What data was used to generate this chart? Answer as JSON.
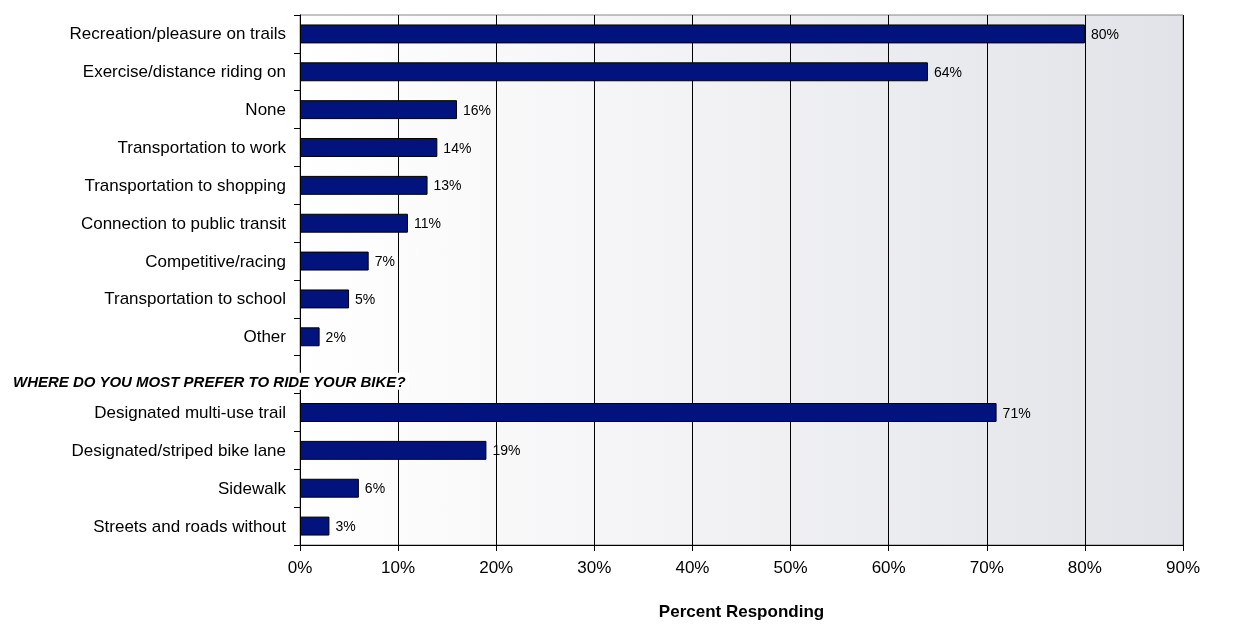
{
  "chart_data": {
    "type": "bar",
    "orientation": "horizontal",
    "categories": [
      "Recreation/pleasure on trails",
      "Exercise/distance riding on",
      "None",
      "Transportation to work",
      "Transportation to shopping",
      "Connection to public transit",
      "Competitive/racing",
      "Transportation to school",
      "Other",
      null,
      "Designated multi-use trail",
      "Designated/striped bike lane",
      "Sidewalk",
      "Streets and roads without"
    ],
    "values": [
      80,
      64,
      16,
      14,
      13,
      11,
      7,
      5,
      2,
      null,
      71,
      19,
      6,
      3
    ],
    "value_labels": [
      "80%",
      "64%",
      "16%",
      "14%",
      "13%",
      "11%",
      "7%",
      "5%",
      "2%",
      null,
      "71%",
      "19%",
      "6%",
      "3%"
    ],
    "color": "#03137e",
    "xlabel": "Percent Responding",
    "xlim": [
      0,
      90
    ],
    "xticks": [
      {
        "value": 0,
        "label": "0%"
      },
      {
        "value": 10,
        "label": "10%"
      },
      {
        "value": 20,
        "label": "20%"
      },
      {
        "value": 30,
        "label": "30%"
      },
      {
        "value": 40,
        "label": "40%"
      },
      {
        "value": 50,
        "label": "50%"
      },
      {
        "value": 60,
        "label": "60%"
      },
      {
        "value": 70,
        "label": "70%"
      },
      {
        "value": 80,
        "label": "80%"
      },
      {
        "value": 90,
        "label": "90%"
      }
    ],
    "annotations": [
      "WHERE DO YOU MOST PREFER TO RIDE YOUR BIKE?"
    ],
    "grid": "x"
  }
}
